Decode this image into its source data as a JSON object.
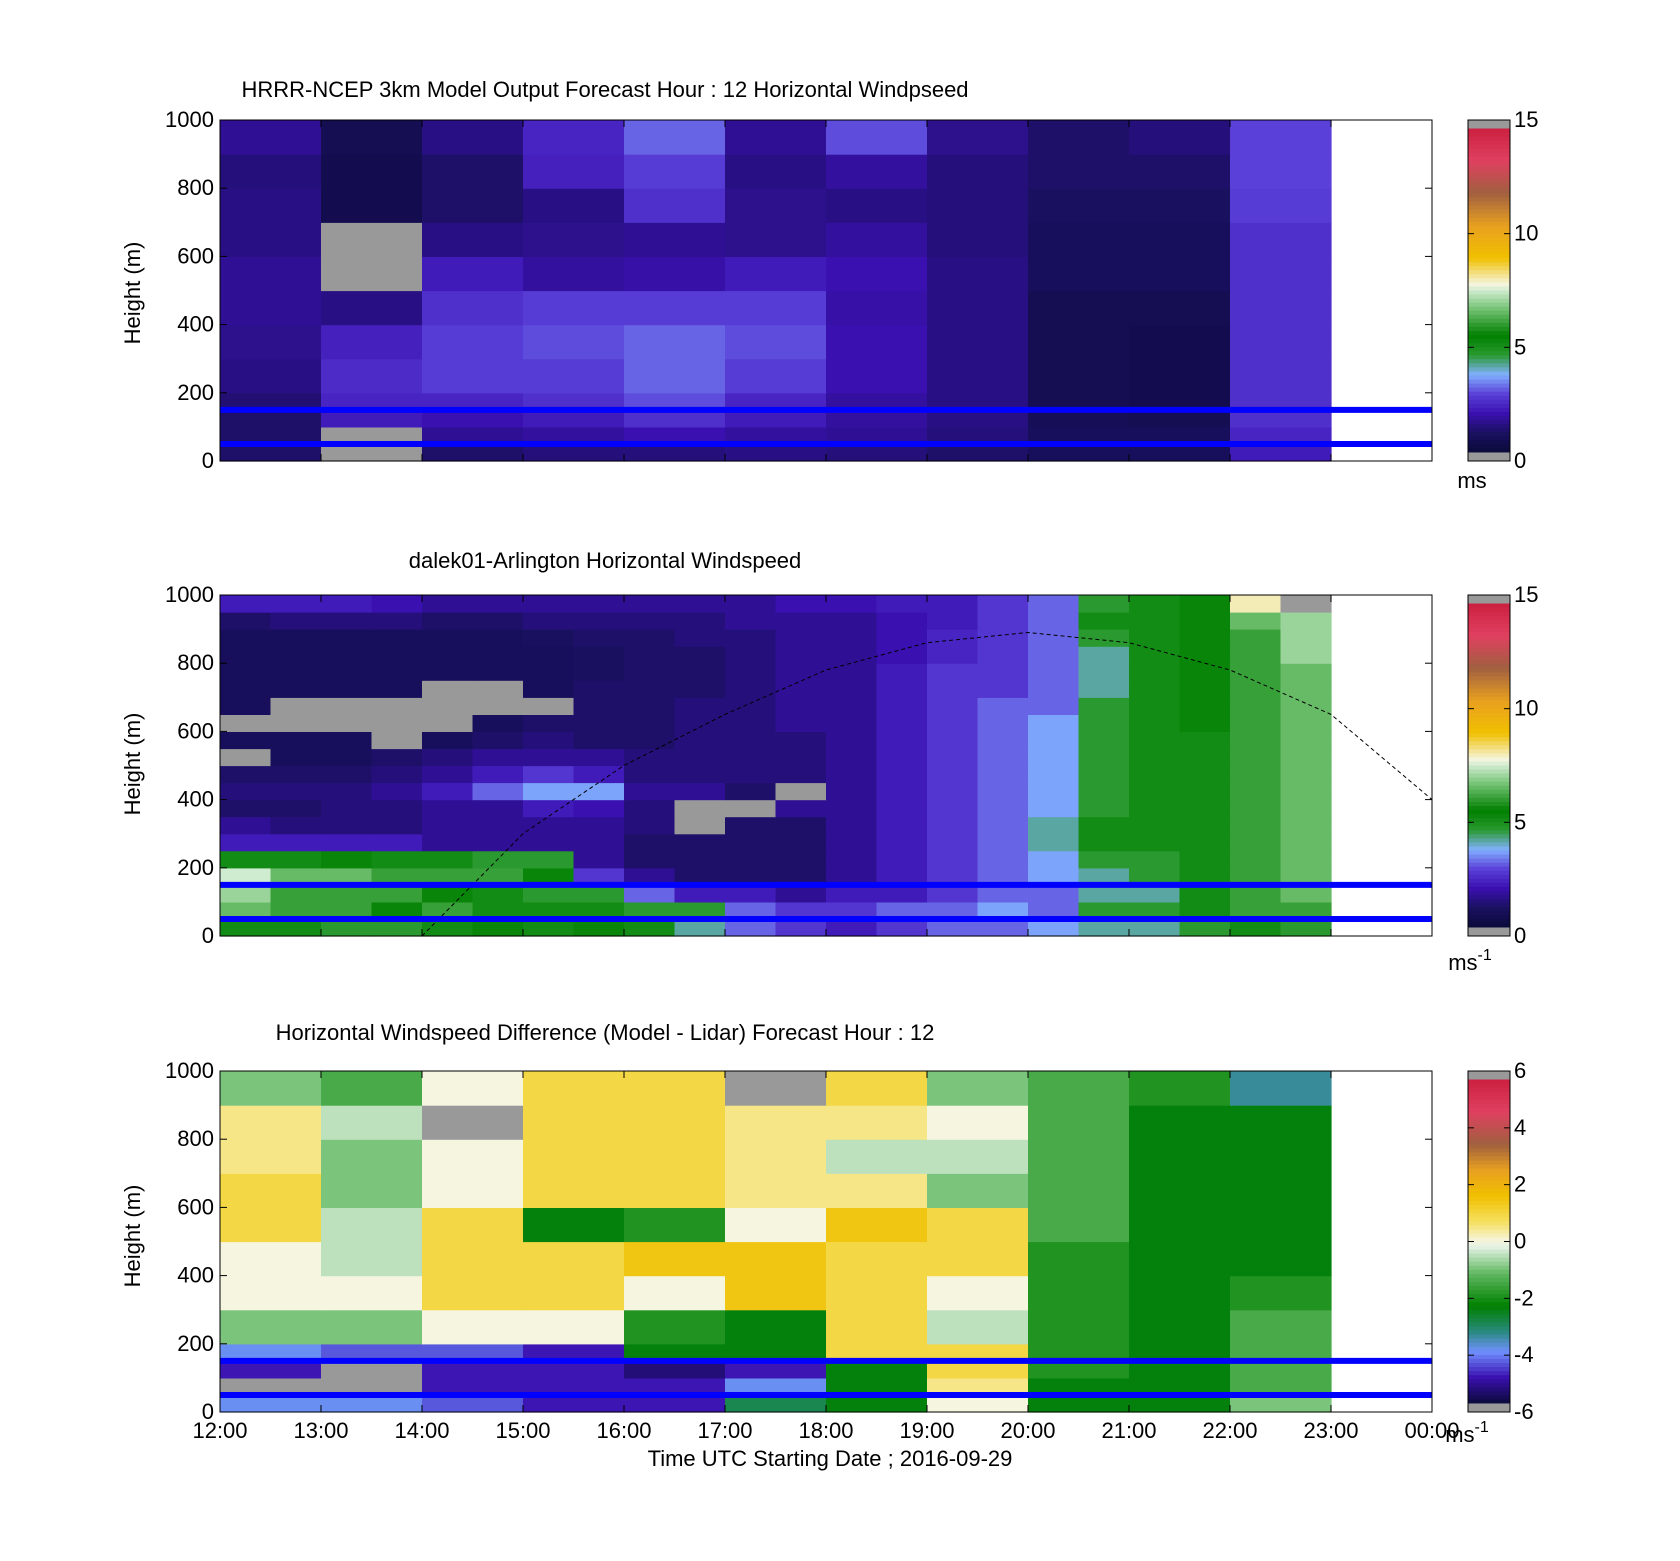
{
  "figure": {
    "xlabel": "Time UTC  Starting Date ; 2016-09-29",
    "time_ticks": [
      "12:00",
      "13:00",
      "14:00",
      "15:00",
      "16:00",
      "17:00",
      "18:00",
      "19:00",
      "20:00",
      "21:00",
      "22:00",
      "23:00",
      "00:00"
    ],
    "colors": {
      "overlay_line": "#0000ff",
      "missing": "#999999",
      "background": "#ffffff"
    }
  },
  "chart_data": [
    {
      "type": "heatmap",
      "title": "HRRR-NCEP 3km Model Output   Forecast Hour : 12 Horizontal Windpseed",
      "ylabel": "Height (m)",
      "ylim": [
        0,
        1000
      ],
      "yticks": [
        "0",
        "200",
        "400",
        "600",
        "800",
        "1000"
      ],
      "colorbar": {
        "range": [
          0,
          15
        ],
        "ticks": [
          "0",
          "5",
          "10",
          "15"
        ],
        "unit": "ms"
      },
      "x_hours": [
        12,
        13,
        14,
        15,
        16,
        17,
        18,
        19,
        20,
        21,
        22
      ],
      "y_levels_m": [
        0,
        50,
        100,
        150,
        200,
        300,
        400,
        500,
        600,
        700,
        800,
        900,
        1000
      ],
      "values_ms": [
        [
          1.0,
          null,
          1.0,
          1.2,
          1.2,
          1.3,
          1.2,
          1.0,
          0.8,
          0.8,
          2.0
        ],
        [
          1.0,
          null,
          1.5,
          1.6,
          1.8,
          1.6,
          1.5,
          1.2,
          0.8,
          0.8,
          2.2
        ],
        [
          1.0,
          2.0,
          1.8,
          2.0,
          2.4,
          2.0,
          1.6,
          1.3,
          0.7,
          0.6,
          2.4
        ],
        [
          1.1,
          2.2,
          2.2,
          2.4,
          2.8,
          2.2,
          1.6,
          1.3,
          0.6,
          0.5,
          2.4
        ],
        [
          1.3,
          2.3,
          2.6,
          2.6,
          3.0,
          2.6,
          1.8,
          1.3,
          0.6,
          0.5,
          2.4
        ],
        [
          1.4,
          2.1,
          2.6,
          2.8,
          3.0,
          2.8,
          1.8,
          1.3,
          0.6,
          0.5,
          2.4
        ],
        [
          1.5,
          1.3,
          2.4,
          2.6,
          2.6,
          2.6,
          1.7,
          1.3,
          0.6,
          0.6,
          2.4
        ],
        [
          1.5,
          null,
          2.0,
          1.6,
          1.7,
          2.0,
          1.8,
          1.3,
          0.8,
          0.8,
          2.4
        ],
        [
          1.3,
          null,
          1.3,
          1.4,
          1.5,
          1.4,
          1.6,
          1.2,
          0.8,
          0.8,
          2.4
        ],
        [
          1.3,
          0.5,
          1.0,
          1.3,
          2.4,
          1.4,
          1.3,
          1.2,
          0.9,
          0.9,
          2.6
        ],
        [
          1.2,
          0.5,
          1.0,
          2.1,
          2.6,
          1.3,
          1.6,
          1.2,
          1.0,
          1.0,
          2.7
        ],
        [
          1.5,
          0.6,
          1.3,
          2.2,
          3.0,
          1.5,
          2.8,
          1.4,
          1.0,
          1.2,
          2.7
        ]
      ],
      "overlay_lines_m": [
        50,
        150
      ]
    },
    {
      "type": "heatmap",
      "title": "dalek01-Arlington  Horizontal Windspeed",
      "ylabel": "Height (m)",
      "ylim": [
        0,
        1000
      ],
      "yticks": [
        "0",
        "200",
        "400",
        "600",
        "800",
        "1000"
      ],
      "colorbar": {
        "range": [
          0,
          15
        ],
        "ticks": [
          "0",
          "5",
          "10",
          "15"
        ],
        "unit": "ms",
        "unit_exp": "-1"
      },
      "x_start_hour": 12,
      "x_step_hours": 0.5,
      "y_levels_m": [
        0,
        50,
        100,
        150,
        200,
        250,
        300,
        350,
        400,
        450,
        500,
        550,
        600,
        650,
        700,
        750,
        800,
        850,
        900,
        950,
        1000
      ],
      "values_ms": [
        [
          5.0,
          5.0,
          4.5,
          4.5,
          5.0,
          5.5,
          5.0,
          5.5,
          5.0,
          4.0,
          3.0,
          2.5,
          2.0,
          2.5,
          3.0,
          3.0,
          3.5,
          4.0,
          4.0,
          4.5,
          5.0,
          4.5
        ],
        [
          6.5,
          6.0,
          6.0,
          5.5,
          6.0,
          5.0,
          5.0,
          5.0,
          4.5,
          4.5,
          3.0,
          2.5,
          2.5,
          3.0,
          3.0,
          3.5,
          3.0,
          4.5,
          4.5,
          5.0,
          6.0,
          6.0
        ],
        [
          7.0,
          6.0,
          6.0,
          6.0,
          5.5,
          5.0,
          4.5,
          4.5,
          3.0,
          2.0,
          2.0,
          1.5,
          2.0,
          2.0,
          2.5,
          3.0,
          3.0,
          4.0,
          4.0,
          5.0,
          6.0,
          6.5
        ],
        [
          7.5,
          6.5,
          6.5,
          6.0,
          6.0,
          6.0,
          5.5,
          2.5,
          1.5,
          1.0,
          1.0,
          1.0,
          1.5,
          2.0,
          2.5,
          3.0,
          3.5,
          4.0,
          4.5,
          5.0,
          6.0,
          6.5
        ],
        [
          5.0,
          5.0,
          5.5,
          5.0,
          5.0,
          4.5,
          4.5,
          1.5,
          1.0,
          1.0,
          1.0,
          1.0,
          1.5,
          2.0,
          2.5,
          3.0,
          3.5,
          4.5,
          4.5,
          5.0,
          6.0,
          6.5
        ],
        [
          2.0,
          2.0,
          2.0,
          2.0,
          1.5,
          1.5,
          1.5,
          1.5,
          1.0,
          1.0,
          1.0,
          1.0,
          1.5,
          2.0,
          2.5,
          3.0,
          4.0,
          5.0,
          5.0,
          5.0,
          6.0,
          6.5
        ],
        [
          1.5,
          1.2,
          1.2,
          1.2,
          1.5,
          1.5,
          1.5,
          1.5,
          1.2,
          null,
          1.0,
          1.0,
          1.5,
          2.0,
          2.5,
          3.0,
          4.0,
          5.0,
          5.0,
          5.0,
          6.0,
          6.5
        ],
        [
          1.0,
          1.0,
          1.2,
          1.2,
          1.5,
          1.5,
          2.0,
          1.8,
          1.2,
          null,
          null,
          1.5,
          1.5,
          2.0,
          2.5,
          3.0,
          3.5,
          4.5,
          5.0,
          5.0,
          6.0,
          6.5
        ],
        [
          1.2,
          1.2,
          1.2,
          1.5,
          2.0,
          3.0,
          3.5,
          3.5,
          1.5,
          1.5,
          1.0,
          null,
          1.5,
          2.0,
          2.5,
          3.0,
          3.5,
          4.5,
          5.0,
          5.0,
          6.0,
          6.5
        ],
        [
          1.0,
          1.0,
          1.0,
          1.2,
          1.5,
          2.0,
          2.5,
          2.0,
          1.2,
          1.2,
          1.2,
          1.2,
          1.5,
          2.0,
          2.5,
          3.0,
          3.5,
          4.5,
          5.0,
          5.0,
          6.0,
          6.5
        ],
        [
          null,
          0.8,
          0.8,
          1.0,
          1.2,
          1.5,
          1.5,
          1.5,
          1.2,
          1.2,
          1.2,
          1.2,
          1.5,
          2.0,
          2.5,
          3.0,
          3.5,
          4.5,
          5.0,
          5.0,
          6.0,
          6.5
        ],
        [
          0.8,
          0.8,
          0.8,
          null,
          0.8,
          1.0,
          1.2,
          1.0,
          1.0,
          1.2,
          1.2,
          1.2,
          1.5,
          2.0,
          2.5,
          3.0,
          3.5,
          4.5,
          5.0,
          5.0,
          6.0,
          6.5
        ],
        [
          null,
          null,
          null,
          null,
          null,
          0.8,
          1.0,
          1.0,
          1.0,
          1.2,
          1.2,
          1.5,
          1.5,
          2.0,
          2.5,
          3.0,
          3.5,
          4.5,
          5.0,
          5.5,
          6.0,
          6.5
        ],
        [
          0.8,
          null,
          null,
          null,
          null,
          null,
          null,
          1.0,
          1.0,
          1.2,
          1.2,
          1.5,
          1.5,
          2.0,
          2.5,
          3.0,
          3.0,
          4.5,
          5.0,
          5.5,
          6.0,
          6.5
        ],
        [
          0.8,
          0.8,
          0.8,
          0.8,
          null,
          null,
          0.8,
          1.0,
          1.0,
          1.0,
          1.2,
          1.5,
          1.5,
          2.0,
          2.5,
          2.5,
          3.0,
          4.0,
          5.0,
          5.5,
          6.0,
          6.5
        ],
        [
          0.8,
          0.8,
          0.8,
          0.8,
          0.8,
          0.8,
          0.8,
          0.9,
          1.0,
          1.0,
          1.2,
          1.5,
          1.5,
          2.0,
          2.5,
          2.5,
          3.0,
          4.0,
          5.0,
          5.5,
          6.0,
          6.5
        ],
        [
          0.8,
          0.8,
          0.8,
          0.8,
          0.8,
          0.8,
          0.8,
          0.9,
          1.0,
          1.0,
          1.2,
          1.5,
          1.5,
          1.8,
          2.2,
          2.5,
          3.0,
          4.0,
          5.0,
          5.5,
          6.0,
          7.0
        ],
        [
          0.8,
          0.8,
          0.8,
          0.8,
          0.8,
          0.8,
          0.9,
          1.0,
          1.0,
          1.2,
          1.2,
          1.5,
          1.5,
          1.8,
          2.2,
          2.5,
          3.0,
          4.5,
          5.0,
          5.5,
          6.0,
          7.0
        ],
        [
          1.0,
          1.2,
          1.2,
          1.2,
          1.0,
          1.0,
          1.2,
          1.2,
          1.2,
          1.2,
          1.5,
          1.5,
          1.5,
          1.8,
          2.0,
          2.5,
          3.0,
          5.0,
          5.0,
          5.5,
          6.5,
          7.0
        ],
        [
          2.0,
          2.0,
          2.0,
          1.8,
          1.5,
          1.5,
          1.5,
          1.5,
          1.5,
          1.5,
          1.5,
          1.8,
          1.8,
          2.0,
          2.0,
          2.5,
          3.0,
          4.5,
          5.0,
          5.5,
          8.0,
          null
        ]
      ],
      "overlay_lines_m": [
        50,
        150
      ],
      "dashed_curve": {
        "x_hours": [
          14.0,
          15.0,
          16.0,
          17.0,
          18.0,
          19.0,
          20.0,
          21.0,
          22.0,
          23.0,
          24.0
        ],
        "y_m": [
          0,
          300,
          500,
          650,
          780,
          860,
          890,
          860,
          780,
          650,
          400
        ]
      }
    },
    {
      "type": "heatmap",
      "title": "Horizontal Windspeed Difference (Model - Lidar) Forecast Hour : 12",
      "ylabel": "Height (m)",
      "ylim": [
        0,
        1000
      ],
      "yticks": [
        "0",
        "200",
        "400",
        "600",
        "800",
        "1000"
      ],
      "colorbar": {
        "range": [
          -6,
          6
        ],
        "ticks": [
          "-6",
          "-4",
          "-2",
          "0",
          "2",
          "4",
          "6"
        ],
        "unit": "ms",
        "unit_exp": "-1"
      },
      "x_hours": [
        12,
        13,
        14,
        15,
        16,
        17,
        18,
        19,
        20,
        21,
        22
      ],
      "y_levels_m": [
        0,
        50,
        100,
        150,
        200,
        300,
        400,
        500,
        600,
        700,
        800,
        900,
        1000
      ],
      "values_ms": [
        [
          -4.0,
          -4.0,
          -4.5,
          -5.0,
          -5.0,
          -3.0,
          -2.5,
          0.0,
          -2.5,
          -2.5,
          -1.0
        ],
        [
          null,
          null,
          -5.0,
          -5.0,
          -5.0,
          -4.0,
          -2.5,
          0.5,
          -2.5,
          -2.5,
          -1.5
        ],
        [
          -5.0,
          null,
          -5.0,
          -5.0,
          -5.5,
          -5.0,
          -2.5,
          1.0,
          -2.0,
          -2.5,
          -1.5
        ],
        [
          -4.0,
          -4.5,
          -4.5,
          -5.0,
          -2.5,
          -2.5,
          1.0,
          1.0,
          -2.0,
          -2.5,
          -1.5
        ],
        [
          -1.0,
          -1.0,
          0.0,
          0.0,
          -2.0,
          -2.5,
          1.0,
          -0.5,
          -2.0,
          -2.5,
          -1.5
        ],
        [
          0.0,
          0.0,
          1.0,
          1.0,
          0.0,
          1.5,
          1.0,
          0.0,
          -2.0,
          -2.5,
          -2.0
        ],
        [
          0.0,
          -0.5,
          1.0,
          1.0,
          1.5,
          1.5,
          1.0,
          1.0,
          -2.0,
          -2.5,
          -2.5
        ],
        [
          1.0,
          -0.5,
          1.0,
          -2.5,
          -2.0,
          0.0,
          1.5,
          1.0,
          -1.5,
          -2.5,
          -2.5
        ],
        [
          1.0,
          -1.0,
          0.0,
          1.0,
          1.0,
          0.5,
          0.5,
          -1.0,
          -1.5,
          -2.5,
          -2.5
        ],
        [
          0.5,
          -1.0,
          0.0,
          1.0,
          1.0,
          0.5,
          -0.5,
          -0.5,
          -1.5,
          -2.5,
          -2.5
        ],
        [
          0.5,
          -0.5,
          null,
          1.0,
          1.0,
          0.5,
          0.5,
          0.0,
          -1.5,
          -2.5,
          -2.5
        ],
        [
          -1.0,
          -1.5,
          0.0,
          1.0,
          1.0,
          null,
          1.0,
          -1.0,
          -1.5,
          -2.0,
          -3.5
        ]
      ],
      "overlay_lines_m": [
        50,
        150
      ]
    }
  ]
}
